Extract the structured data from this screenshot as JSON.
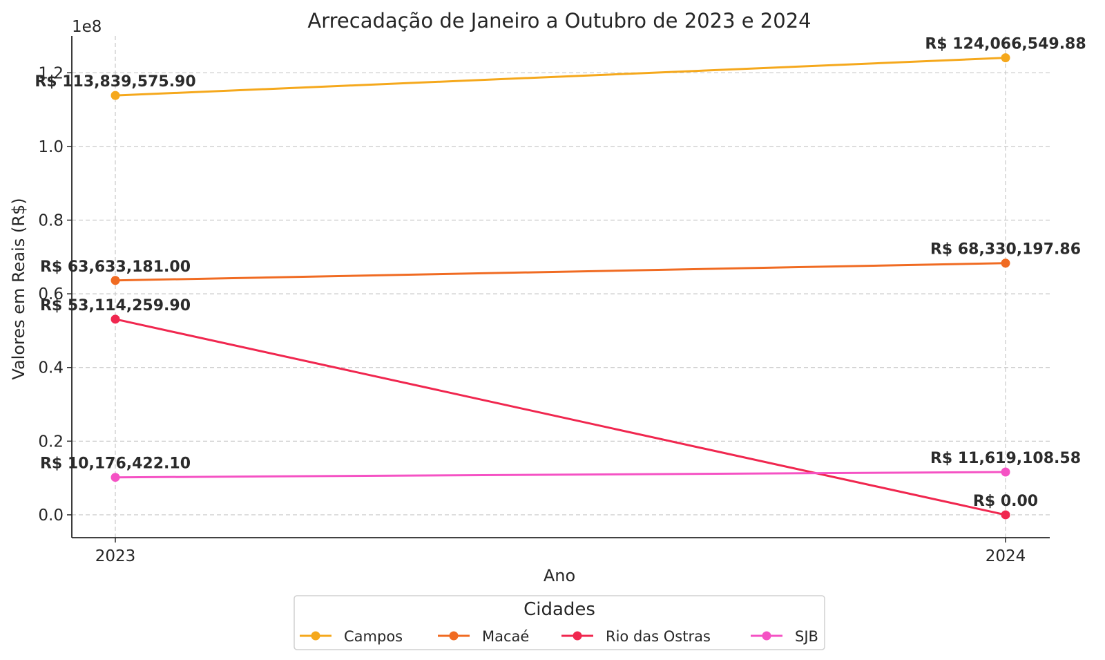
{
  "chart_data": {
    "type": "line",
    "title": "Arrecadação de Janeiro a Outubro de 2023 e 2024",
    "xlabel": "Ano",
    "ylabel": "Valores em Reais (R$)",
    "y_scale_label": "1e8",
    "x": [
      "2023",
      "2024"
    ],
    "ylim": [
      -6200000,
      130000000
    ],
    "yticks": [
      0.0,
      0.2,
      0.4,
      0.6,
      0.8,
      1.0,
      1.2
    ],
    "ytick_labels": [
      "0.0",
      "0.2",
      "0.4",
      "0.6",
      "0.8",
      "1.0",
      "1.2"
    ],
    "grid": true,
    "series": [
      {
        "name": "Campos",
        "color": "#f5a81c",
        "values": [
          113839575.9,
          124066549.88
        ],
        "labels": [
          "R$ 113,839,575.90",
          "R$ 124,066,549.88"
        ]
      },
      {
        "name": "Macaé",
        "color": "#f06b22",
        "values": [
          63633181.0,
          68330197.86
        ],
        "labels": [
          "R$ 63,633,181.00",
          "R$ 68,330,197.86"
        ]
      },
      {
        "name": "Rio das Ostras",
        "color": "#f0274f",
        "values": [
          53114259.9,
          0.0
        ],
        "labels": [
          "R$ 53,114,259.90",
          "R$ 0.00"
        ]
      },
      {
        "name": "SJB",
        "color": "#f552c4",
        "values": [
          10176422.1,
          11619108.58
        ],
        "labels": [
          "R$ 10,176,422.10",
          "R$ 11,619,108.58"
        ]
      }
    ],
    "legend": {
      "title": "Cidades",
      "position": "bottom-center"
    }
  }
}
